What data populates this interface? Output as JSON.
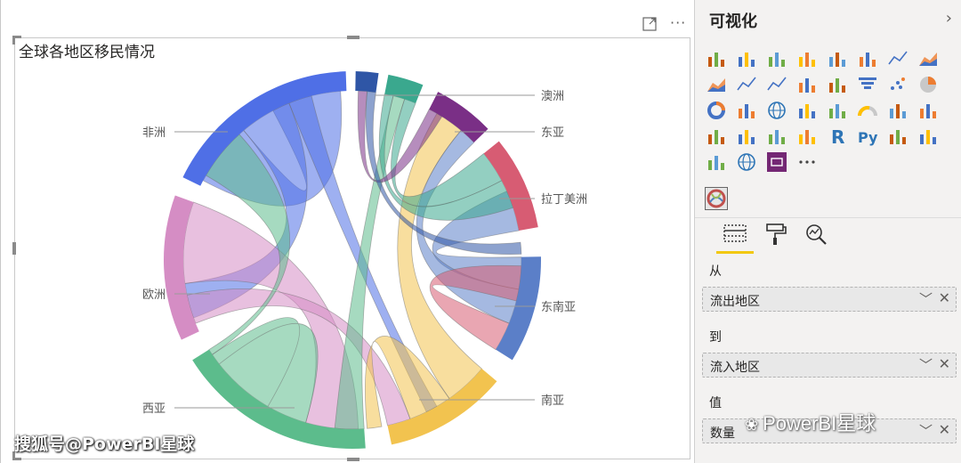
{
  "visual": {
    "title": "全球各地区移民情况",
    "focus_icon": "focus-mode-icon",
    "more_icon": "more-options-icon",
    "more_label": "···"
  },
  "chart_data": {
    "type": "chord",
    "title": "全球各地区移民情况",
    "categories": [
      "澳洲",
      "东亚",
      "拉丁美洲",
      "东南亚",
      "南亚",
      "西亚",
      "欧洲",
      "非洲"
    ],
    "colors": [
      "#2f56a6",
      "#3aa88e",
      "#7a2f86",
      "#d75c73",
      "#5b7fc8",
      "#f2c34f",
      "#5cbc8c",
      "#d58dc4",
      "#4f6fe6"
    ],
    "labels": [
      "澳洲",
      "东亚",
      "拉丁美洲",
      "东南亚",
      "南亚",
      "西亚",
      "欧洲",
      "非洲"
    ]
  },
  "watermark_left": "搜狐号@PowerBI星球",
  "pane": {
    "title": "可视化",
    "chevron": "›",
    "tabs": [
      "fields-tab",
      "format-tab",
      "analytics-tab"
    ],
    "more_label": "···",
    "wells": [
      {
        "label": "从",
        "value": "流出地区"
      },
      {
        "label": "到",
        "value": "流入地区"
      },
      {
        "label": "值",
        "value": "数量"
      }
    ],
    "watermark": "PowerBI星球"
  }
}
